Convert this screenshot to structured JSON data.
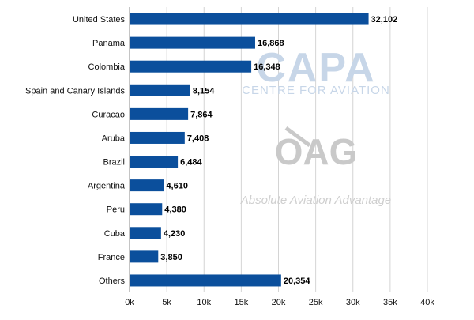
{
  "chart_data": {
    "type": "bar",
    "orientation": "horizontal",
    "categories": [
      "United States",
      "Panama",
      "Colombia",
      "Spain and Canary Islands",
      "Curacao",
      "Aruba",
      "Brazil",
      "Argentina",
      "Peru",
      "Cuba",
      "France",
      "Others"
    ],
    "values": [
      32102,
      16868,
      16348,
      8154,
      7864,
      7408,
      6484,
      4610,
      4380,
      4230,
      3850,
      20354
    ],
    "value_labels": [
      "32,102",
      "16,868",
      "16,348",
      "8,154",
      "7,864",
      "7,408",
      "6,484",
      "4,610",
      "4,380",
      "4,230",
      "3,850",
      "20,354"
    ],
    "x_ticks": [
      0,
      5000,
      10000,
      15000,
      20000,
      25000,
      30000,
      35000,
      40000
    ],
    "x_tick_labels": [
      "0k",
      "5k",
      "10k",
      "15k",
      "20k",
      "25k",
      "30k",
      "35k",
      "40k"
    ],
    "xlim": [
      0,
      40000
    ],
    "grid": true,
    "bar_color": "#0b4f9c",
    "title": "",
    "xlabel": "",
    "ylabel": ""
  },
  "watermarks": {
    "capa_title": "CAPA",
    "capa_subtitle": "CENTRE FOR AVIATION",
    "oag_title": "OAG",
    "oag_subtitle": "Absolute Aviation Advantage"
  }
}
